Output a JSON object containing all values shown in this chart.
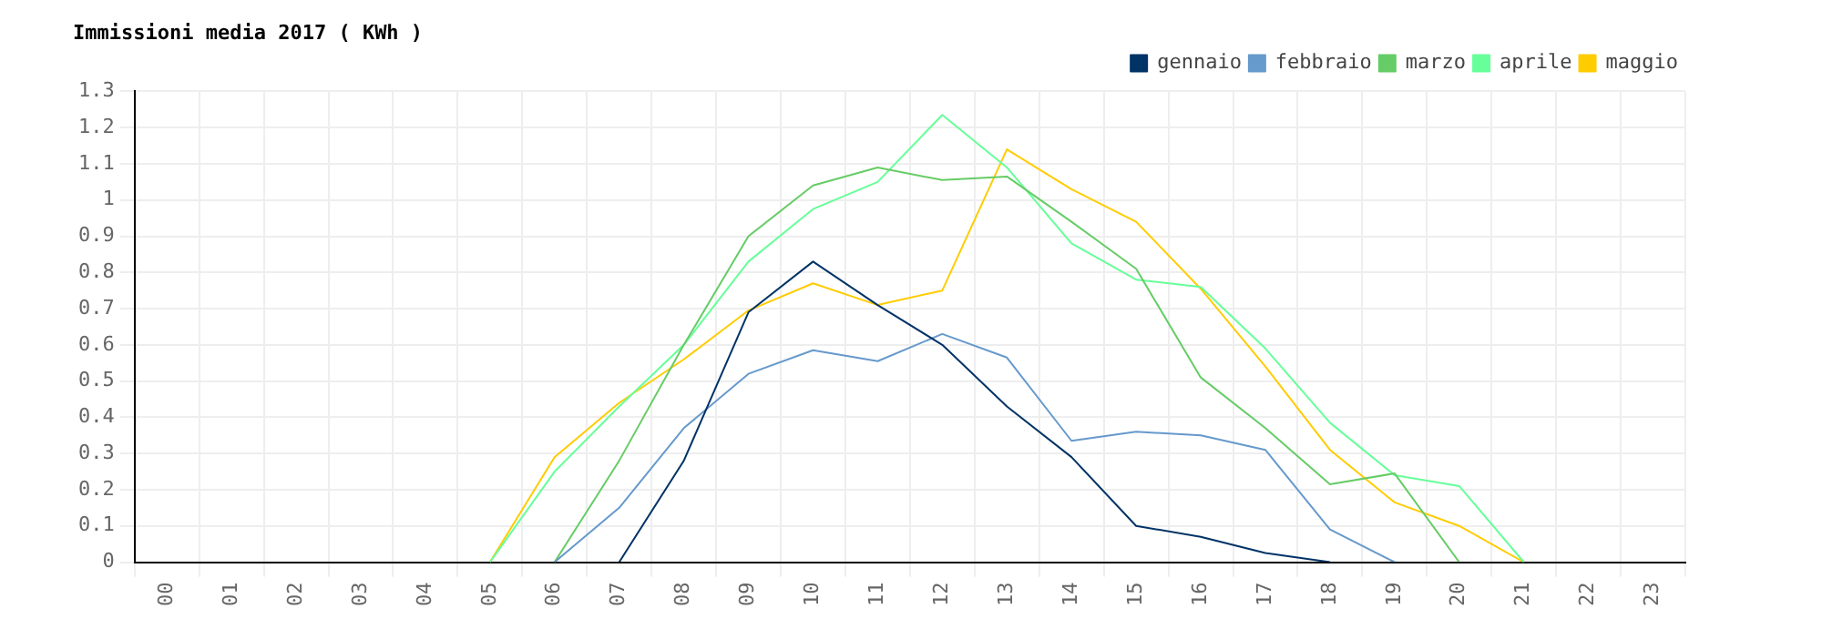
{
  "chart_data": {
    "type": "line",
    "title": "Immissioni media 2017 ( KWh )",
    "categories": [
      "00",
      "01",
      "02",
      "03",
      "04",
      "05",
      "06",
      "07",
      "08",
      "09",
      "10",
      "11",
      "12",
      "13",
      "14",
      "15",
      "16",
      "17",
      "18",
      "19",
      "20",
      "21",
      "22",
      "23"
    ],
    "series": [
      {
        "name": "gennaio",
        "color": "#003366",
        "values": [
          null,
          null,
          null,
          null,
          null,
          null,
          null,
          0,
          0.28,
          0.69,
          0.83,
          0.71,
          0.6,
          0.43,
          0.29,
          0.1,
          0.07,
          0.025,
          0,
          null,
          null,
          null,
          null,
          null
        ]
      },
      {
        "name": "febbraio",
        "color": "#6699cc",
        "values": [
          null,
          null,
          null,
          null,
          null,
          null,
          0,
          0.15,
          0.37,
          0.52,
          0.585,
          0.555,
          0.63,
          0.565,
          0.335,
          0.36,
          0.35,
          0.31,
          0.09,
          0,
          null,
          null,
          null,
          null
        ]
      },
      {
        "name": "marzo",
        "color": "#66cc66",
        "values": [
          null,
          null,
          null,
          null,
          null,
          null,
          0,
          0.28,
          0.6,
          0.9,
          1.04,
          1.09,
          1.055,
          1.065,
          0.94,
          0.81,
          0.51,
          0.37,
          0.215,
          0.245,
          0,
          null,
          null,
          null
        ]
      },
      {
        "name": "aprile",
        "color": "#66ff99",
        "values": [
          null,
          null,
          null,
          null,
          null,
          0,
          0.25,
          0.43,
          0.6,
          0.83,
          0.975,
          1.05,
          1.235,
          1.09,
          0.88,
          0.78,
          0.76,
          0.59,
          0.385,
          0.24,
          0.21,
          0,
          null,
          null
        ]
      },
      {
        "name": "maggio",
        "color": "#ffcc00",
        "values": [
          null,
          null,
          null,
          null,
          null,
          0,
          0.29,
          0.44,
          0.56,
          0.695,
          0.77,
          0.71,
          0.75,
          1.14,
          1.03,
          0.94,
          0.755,
          0.54,
          0.31,
          0.165,
          0.1,
          0,
          null,
          null
        ]
      }
    ],
    "ylim": [
      0,
      1.3
    ],
    "yticks": [
      0,
      0.1,
      0.2,
      0.3,
      0.4,
      0.5,
      0.6,
      0.7,
      0.8,
      0.9,
      1,
      1.1,
      1.2,
      1.3
    ],
    "grid": true,
    "legend": "top right",
    "marker": "none",
    "line_style": "solid"
  }
}
